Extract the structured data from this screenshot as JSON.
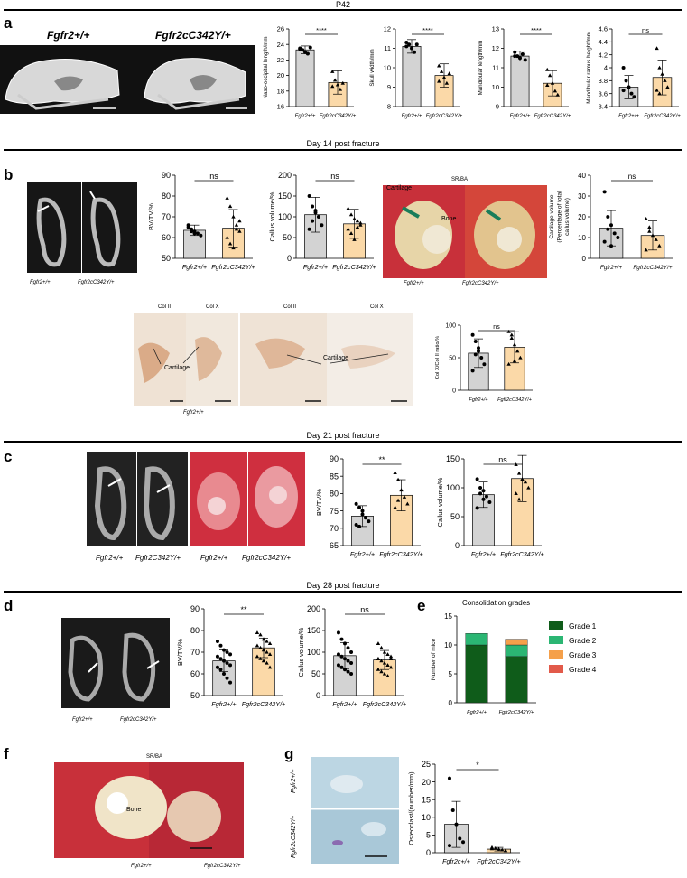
{
  "sections": {
    "p42": "P42",
    "day14": "Day 14 post fracture",
    "day21": "Day 21 post fracture",
    "day28": "Day 28 post fracture"
  },
  "panels": {
    "a": "a",
    "b": "b",
    "c": "c",
    "d": "d",
    "e": "e",
    "f": "f",
    "g": "g"
  },
  "images": {
    "a_wt": "Fgfr2+/+",
    "a_mut": "Fgfr2cC342Y/+",
    "b_wt": "Fgfr2+/+",
    "b_mut": "Fgfr2cC342Y/+",
    "b_srba_title": "SR/BA",
    "b_srba_cartilage": "Cartilage",
    "b_srba_bone": "Bone",
    "b_srba_wt": "Fgfr2+/+",
    "b_srba_mut": "Fgfr2cC342Y/+",
    "b_col_ii_1": "Col II",
    "b_col_x_1": "Col X",
    "b_col_ii_2": "Col II",
    "b_col_x_2": "Col X",
    "b_col_cartilage_1": "Cartilage",
    "b_col_cartilage_2": "Cartilage",
    "b_col_wt": "Fgfr2+/+",
    "c_wt": "Fgfr2+/+",
    "c_mut": "Fgfr2C342Y/+",
    "c_wt2": "Fgfr2+/+",
    "c_mut2": "Fgfr2cC342Y/+",
    "d_wt": "Fgfr2+/+",
    "d_mut": "Fgfr2cC342Y/+",
    "f_title": "SR/BA",
    "f_bone": "Bone",
    "f_wt": "Fgfr2+/+",
    "f_mut": "Fgfr2cC342Y/+",
    "g_wt": "Fgfr2+/+",
    "g_mut": "Fgfr2cC342Y/+"
  },
  "chart_data": [
    {
      "id": "a1",
      "type": "bar",
      "categories": [
        "Fgfr2+/+",
        "Fgfr2cC342Y/+"
      ],
      "values": [
        23.3,
        19.1
      ],
      "errors": [
        0.5,
        1.5
      ],
      "ylabel": "Naso-occipital length/mm",
      "ylim": [
        16,
        26
      ],
      "yticks": [
        16,
        18,
        20,
        22,
        24,
        26
      ],
      "sig": "****",
      "points": [
        [
          23.5,
          23.3,
          23.0,
          22.8,
          23.6,
          23.4
        ],
        [
          20.5,
          19.4,
          18.8,
          18.2,
          19.0,
          18.6
        ]
      ]
    },
    {
      "id": "a2",
      "type": "bar",
      "categories": [
        "Fgfr2+/+",
        "Fgfr2cC342Y/+"
      ],
      "values": [
        11.1,
        9.6
      ],
      "errors": [
        0.35,
        0.6
      ],
      "ylabel": "Skull width/mm",
      "ylim": [
        8,
        12
      ],
      "yticks": [
        8,
        9,
        10,
        11,
        12
      ],
      "sig": "****",
      "points": [
        [
          11.3,
          11.2,
          11.0,
          10.8,
          11.2,
          11.1
        ],
        [
          10.1,
          9.8,
          9.5,
          9.2,
          9.7,
          9.3
        ]
      ]
    },
    {
      "id": "a3",
      "type": "bar",
      "categories": [
        "Fgfr2+/+",
        "Fgfr2cC342Y/+"
      ],
      "values": [
        11.6,
        10.2
      ],
      "errors": [
        0.25,
        0.65
      ],
      "ylabel": "Mandibular length/mm",
      "ylim": [
        9,
        13
      ],
      "yticks": [
        9,
        10,
        11,
        12,
        13
      ],
      "sig": "****",
      "points": [
        [
          11.8,
          11.6,
          11.5,
          11.7,
          11.4,
          11.6
        ],
        [
          10.9,
          10.6,
          10.2,
          9.8,
          9.6,
          10.1
        ]
      ]
    },
    {
      "id": "a4",
      "type": "bar",
      "categories": [
        "Fgfr2+/+",
        "Fgfr2cC342Y/+"
      ],
      "values": [
        3.7,
        3.85
      ],
      "errors": [
        0.18,
        0.27
      ],
      "ylabel": "Mandibular ramus height/mm",
      "ylim": [
        3.4,
        4.6
      ],
      "yticks": [
        3.4,
        3.6,
        3.8,
        4.0,
        4.2,
        4.4,
        4.6
      ],
      "sig": "ns",
      "points": [
        [
          4.0,
          3.8,
          3.7,
          3.6,
          3.55,
          3.65
        ],
        [
          4.3,
          4.0,
          3.9,
          3.8,
          3.7,
          3.65,
          3.6
        ]
      ]
    },
    {
      "id": "b1",
      "type": "bar",
      "categories": [
        "Fgfr2+/+",
        "Fgfr2cC342Y/+"
      ],
      "values": [
        63.5,
        64.5
      ],
      "errors": [
        2.5,
        9
      ],
      "ylabel": "BV/TV/%",
      "ylim": [
        50,
        90
      ],
      "yticks": [
        50,
        60,
        70,
        80,
        90
      ],
      "sig": "ns",
      "points": [
        [
          65,
          64,
          63,
          62,
          61,
          66,
          63,
          62
        ],
        [
          79,
          75,
          70,
          66,
          63,
          60,
          57,
          55,
          64,
          68
        ]
      ]
    },
    {
      "id": "b2",
      "type": "bar",
      "categories": [
        "Fgfr2+/+",
        "Fgfr2cC342Y/+"
      ],
      "values": [
        105,
        83
      ],
      "errors": [
        42,
        35
      ],
      "ylabel": "Callus volume/%",
      "ylim": [
        0,
        200
      ],
      "yticks": [
        0,
        50,
        100,
        150,
        200
      ],
      "sig": "ns",
      "points": [
        [
          150,
          125,
          110,
          100,
          80,
          70,
          90,
          115
        ],
        [
          120,
          105,
          95,
          90,
          80,
          70,
          60,
          45,
          75,
          85
        ]
      ]
    },
    {
      "id": "b3",
      "type": "bar",
      "categories": [
        "Fgfr2+/+",
        "Fgfr2cC342Y/+"
      ],
      "values": [
        14.5,
        11
      ],
      "errors": [
        8.5,
        7
      ],
      "ylabel": "Cartilage volume (Percentage of total callus volume)",
      "ylim": [
        0,
        40
      ],
      "yticks": [
        0,
        10,
        20,
        30,
        40
      ],
      "sig": "ns",
      "points": [
        [
          32,
          20,
          16,
          12,
          10,
          8,
          14,
          6
        ],
        [
          19,
          15,
          11,
          9,
          6,
          4,
          13
        ]
      ]
    },
    {
      "id": "b4",
      "type": "bar",
      "categories": [
        "Fgfr2+/+",
        "Fgfr2cC342Y/+"
      ],
      "values": [
        57,
        66
      ],
      "errors": [
        22,
        24
      ],
      "ylabel": "Col X/Col II ratio/%",
      "ylim": [
        0,
        100
      ],
      "yticks": [
        0,
        50,
        100
      ],
      "sig": "ns",
      "points": [
        [
          85,
          75,
          60,
          50,
          40,
          30,
          55,
          65
        ],
        [
          90,
          85,
          70,
          60,
          50,
          40,
          80,
          45
        ]
      ]
    },
    {
      "id": "c1",
      "type": "bar",
      "categories": [
        "Fgfr2+/+",
        "Fgfr2cC342Y/+"
      ],
      "values": [
        73.5,
        79.5
      ],
      "errors": [
        3,
        4.5
      ],
      "ylabel": "BV/TV/%",
      "ylim": [
        65,
        90
      ],
      "yticks": [
        65,
        70,
        75,
        80,
        85,
        90
      ],
      "sig": "**",
      "points": [
        [
          77,
          76,
          74,
          73,
          72,
          71,
          70.5,
          75
        ],
        [
          86,
          84,
          81,
          79,
          77,
          76,
          78
        ]
      ]
    },
    {
      "id": "c2",
      "type": "bar",
      "categories": [
        "Fgfr2+/+",
        "Fgfr2cC342Y/+"
      ],
      "values": [
        88,
        116
      ],
      "errors": [
        22,
        40
      ],
      "ylabel": "Callus volume/%",
      "ylim": [
        0,
        150
      ],
      "yticks": [
        0,
        50,
        100,
        150
      ],
      "sig": "ns",
      "points": [
        [
          115,
          100,
          95,
          85,
          75,
          65,
          90,
          80
        ],
        [
          140,
          125,
          115,
          110,
          100,
          90,
          80
        ]
      ]
    },
    {
      "id": "d1",
      "type": "bar",
      "categories": [
        "Fgfr2+/+",
        "Fgfr2cC342Y/+"
      ],
      "values": [
        66,
        72
      ],
      "errors": [
        5,
        4.5
      ],
      "ylabel": "BV/TV/%",
      "ylim": [
        50,
        90
      ],
      "yticks": [
        50,
        60,
        70,
        80,
        90
      ],
      "sig": "**",
      "points": [
        [
          75,
          73,
          71,
          70,
          69,
          68,
          67,
          66,
          65,
          64,
          63,
          62,
          60,
          58,
          56
        ],
        [
          79,
          78,
          76,
          75,
          74,
          73,
          72,
          71,
          70,
          69,
          68,
          67,
          66,
          65,
          63
        ]
      ]
    },
    {
      "id": "d2",
      "type": "bar",
      "categories": [
        "Fgfr2+/+",
        "Fgfr2cC342Y/+"
      ],
      "values": [
        92,
        82
      ],
      "errors": [
        30,
        22
      ],
      "ylabel": "Callus volume/%",
      "ylim": [
        0,
        200
      ],
      "yticks": [
        0,
        50,
        100,
        150,
        200
      ],
      "sig": "ns",
      "points": [
        [
          145,
          130,
          120,
          110,
          100,
          95,
          90,
          85,
          80,
          75,
          70,
          65,
          60,
          55,
          50
        ],
        [
          120,
          110,
          100,
          95,
          90,
          85,
          80,
          75,
          70,
          65,
          60,
          55,
          50,
          45,
          85
        ]
      ]
    },
    {
      "id": "e",
      "type": "bar",
      "stacked": true,
      "title": "Consolidation grades",
      "categories": [
        "Fgfr2+/+",
        "Fgfr2cC342Y/+"
      ],
      "series": [
        {
          "name": "Grade 1",
          "values": [
            10,
            8
          ],
          "color": "#0f5c1a"
        },
        {
          "name": "Grade 2",
          "values": [
            2,
            2
          ],
          "color": "#2bb673"
        },
        {
          "name": "Grade 3",
          "values": [
            0,
            1
          ],
          "color": "#f5a04a"
        },
        {
          "name": "Grade 4",
          "values": [
            0,
            0
          ],
          "color": "#e25a4a"
        }
      ],
      "ylabel": "Number of mice",
      "ylim": [
        0,
        15
      ],
      "yticks": [
        0,
        5,
        10,
        15
      ]
    },
    {
      "id": "g1",
      "type": "bar",
      "categories": [
        "Fgfr2c+/+",
        "Fgfr2cC342Y/+"
      ],
      "values": [
        8,
        1
      ],
      "errors": [
        6.5,
        0.5
      ],
      "ylabel": "Osteoclast/(number/mm)",
      "ylim": [
        0,
        25
      ],
      "yticks": [
        0,
        5,
        10,
        15,
        20,
        25
      ],
      "sig": "*",
      "points": [
        [
          21,
          12,
          8,
          4,
          3,
          2
        ],
        [
          1.5,
          1.2,
          1.0,
          0.8,
          0.6,
          1.1
        ]
      ]
    }
  ]
}
